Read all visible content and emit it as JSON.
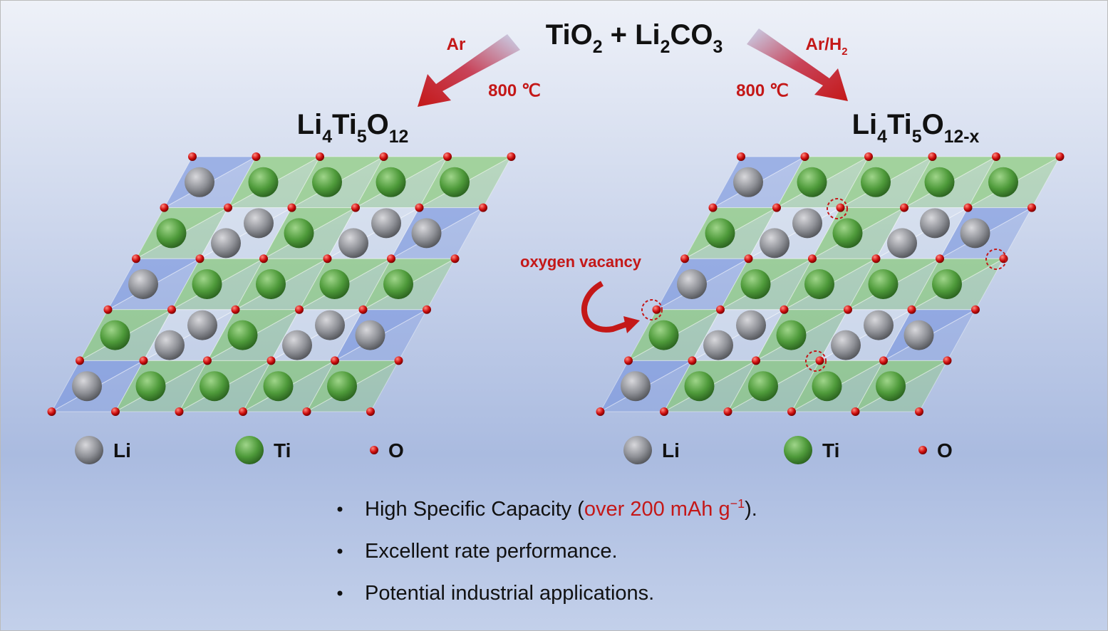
{
  "reactants": [
    {
      "text": "TiO"
    },
    {
      "sub": "2"
    },
    {
      "text": " + Li"
    },
    {
      "sub": "2"
    },
    {
      "text": "CO"
    },
    {
      "sub": "3"
    }
  ],
  "left_arrow": {
    "gas": [
      {
        "red": "Ar"
      }
    ],
    "temperature": "800 ℃"
  },
  "right_arrow": {
    "gas": [
      {
        "red": "Ar/H"
      },
      {
        "red_sub": "2"
      }
    ],
    "temperature": "800 ℃"
  },
  "panels": [
    {
      "formula": [
        {
          "text": "Li"
        },
        {
          "sub": "4"
        },
        {
          "text": "Ti"
        },
        {
          "sub": "5"
        },
        {
          "text": "O"
        },
        {
          "sub": "12"
        }
      ],
      "legend": [
        "Li",
        "Ti",
        "O"
      ]
    },
    {
      "formula": [
        {
          "text": "Li"
        },
        {
          "sub": "4"
        },
        {
          "text": "Ti"
        },
        {
          "sub": "5"
        },
        {
          "text": "O"
        },
        {
          "sub": "12-x"
        }
      ],
      "annotation": "oxygen vacancy",
      "legend": [
        "Li",
        "Ti",
        "O"
      ]
    }
  ],
  "bullets": [
    [
      {
        "text": "High Specific Capacity ("
      },
      {
        "red": "over 200 mAh g"
      },
      {
        "red_sup": "−1"
      },
      {
        "text": ")."
      }
    ],
    [
      {
        "text": "Excellent rate performance."
      }
    ],
    [
      {
        "text": "Potential industrial applications."
      }
    ]
  ]
}
